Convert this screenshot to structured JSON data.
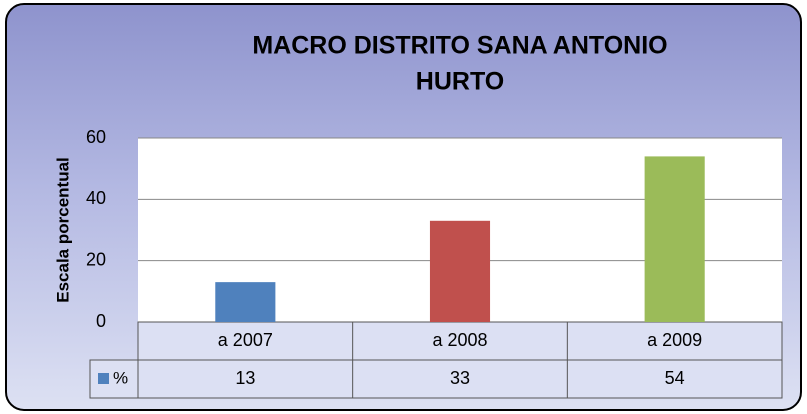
{
  "chart_data": {
    "type": "bar",
    "title": [
      "MACRO DISTRITO SANA ANTONIO",
      "HURTO"
    ],
    "y_label": "Escala porcentual",
    "categories": [
      "a 2007",
      "a 2008",
      "a 2009"
    ],
    "series": [
      {
        "name": "%",
        "color": "#4f81bd",
        "colors": [
          "#4f81bd",
          "#c0504d",
          "#9bbb59"
        ],
        "values": [
          13,
          33,
          54
        ]
      }
    ],
    "ylim": [
      0,
      60
    ],
    "yticks": [
      0,
      20,
      40,
      60
    ],
    "grid": true,
    "data_table": true
  }
}
